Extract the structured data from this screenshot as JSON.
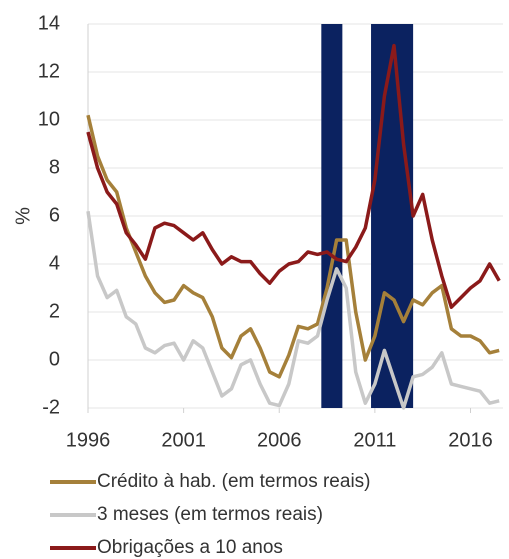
{
  "chart_data": {
    "type": "line",
    "ylabel": "%",
    "x": [
      1996,
      1996.5,
      1997,
      1997.5,
      1998,
      1998.5,
      1999,
      1999.5,
      2000,
      2000.5,
      2001,
      2001.5,
      2002,
      2002.5,
      2003,
      2003.5,
      2004,
      2004.5,
      2005,
      2005.5,
      2006,
      2006.5,
      2007,
      2007.5,
      2008,
      2008.5,
      2009,
      2009.5,
      2010,
      2010.5,
      2011,
      2011.5,
      2012,
      2012.5,
      2013,
      2013.5,
      2014,
      2014.5,
      2015,
      2015.5,
      2016,
      2016.5,
      2017,
      2017.5
    ],
    "series": [
      {
        "name": "Crédito à hab. (em termos reais)",
        "color": "#a5803a",
        "values": [
          10.2,
          8.5,
          7.5,
          7.0,
          5.5,
          4.5,
          3.5,
          2.8,
          2.4,
          2.5,
          3.1,
          2.8,
          2.6,
          1.8,
          0.5,
          0.1,
          1.0,
          1.3,
          0.5,
          -0.5,
          -0.7,
          0.2,
          1.4,
          1.3,
          1.5,
          3.0,
          5.0,
          5.0,
          2.0,
          0.0,
          1.0,
          2.8,
          2.5,
          1.6,
          2.5,
          2.3,
          2.8,
          3.1,
          1.3,
          1.0,
          1.0,
          0.8,
          0.3,
          0.4
        ]
      },
      {
        "name": "3 meses (em termos reais)",
        "color": "#c8c8c8",
        "values": [
          6.2,
          3.5,
          2.6,
          2.9,
          1.8,
          1.5,
          0.5,
          0.3,
          0.6,
          0.7,
          0.0,
          0.8,
          0.5,
          -0.5,
          -1.5,
          -1.2,
          -0.2,
          0.0,
          -1.0,
          -1.8,
          -1.9,
          -1.0,
          0.8,
          0.7,
          1.0,
          2.5,
          3.8,
          3.0,
          -0.5,
          -1.8,
          -1.0,
          0.4,
          -0.8,
          -2.0,
          -0.7,
          -0.6,
          -0.3,
          0.3,
          -1.0,
          -1.1,
          -1.2,
          -1.3,
          -1.8,
          -1.7
        ]
      },
      {
        "name": "Obrigações a 10 anos",
        "color": "#8b1a1a",
        "values": [
          9.5,
          8.0,
          7.0,
          6.5,
          5.3,
          4.8,
          4.2,
          5.5,
          5.7,
          5.6,
          5.3,
          5.0,
          5.3,
          4.6,
          4.0,
          4.3,
          4.1,
          4.1,
          3.6,
          3.2,
          3.7,
          4.0,
          4.1,
          4.5,
          4.4,
          4.5,
          4.2,
          4.1,
          4.7,
          5.5,
          7.5,
          11.0,
          13.1,
          9.0,
          6.0,
          6.9,
          5.0,
          3.5,
          2.2,
          2.6,
          3.0,
          3.3,
          4.0,
          3.3
        ]
      }
    ],
    "shaded_periods": [
      [
        2008.2,
        2009.3
      ],
      [
        2010.8,
        2013.0
      ]
    ],
    "shade_color": "#0b2260",
    "xlim": [
      1996,
      2017.7
    ],
    "xticks": [
      1996,
      2001,
      2006,
      2011,
      2016
    ],
    "ylim": [
      -2,
      14
    ],
    "yticks": [
      -2,
      0,
      2,
      4,
      6,
      8,
      10,
      12,
      14
    ],
    "grid": true
  }
}
